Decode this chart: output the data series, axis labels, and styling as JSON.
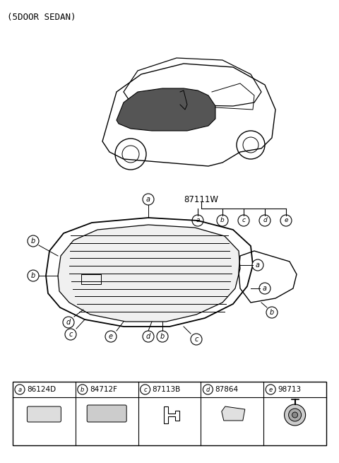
{
  "title": "(5DOOR SEDAN)",
  "part_number_main": "87111W",
  "background_color": "#ffffff",
  "line_color": "#000000",
  "parts": [
    {
      "label": "a",
      "code": "86124D"
    },
    {
      "label": "b",
      "code": "84712F"
    },
    {
      "label": "c",
      "code": "87113B"
    },
    {
      "label": "d",
      "code": "87864"
    },
    {
      "label": "e",
      "code": "98713"
    }
  ],
  "callout_labels": [
    "a",
    "b",
    "c",
    "d",
    "e"
  ],
  "fig_width": 4.8,
  "fig_height": 6.55,
  "dpi": 100
}
